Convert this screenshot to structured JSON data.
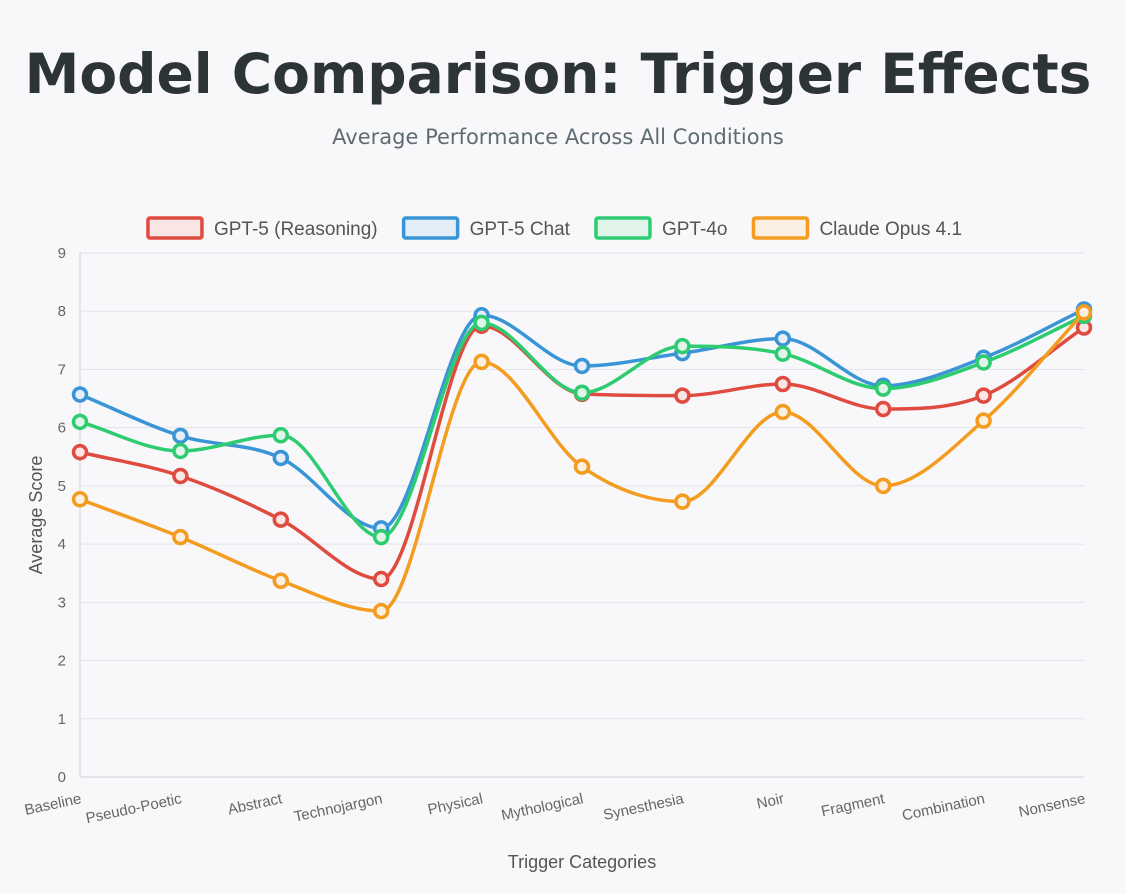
{
  "chart_data": {
    "type": "line",
    "title": "Model Comparison: Trigger Effects",
    "subtitle": "Average Performance Across All Conditions",
    "xlabel": "Trigger Categories",
    "ylabel": "Average Score",
    "ylim": [
      0,
      9
    ],
    "yticks": [
      "0",
      "1",
      "2",
      "3",
      "4",
      "5",
      "6",
      "7",
      "8",
      "9"
    ],
    "grid": true,
    "legend_position": "top",
    "categories": [
      "Baseline",
      "Pseudo-Poetic",
      "Abstract",
      "Technojargon",
      "Physical",
      "Mythological",
      "Synesthesia",
      "Noir",
      "Fragment",
      "Combination",
      "Nonsense"
    ],
    "series": [
      {
        "name": "GPT-5 (Reasoning)",
        "color": "#e04b3f",
        "fill": "#fbe6e6",
        "values": [
          5.58,
          5.17,
          4.42,
          3.4,
          7.75,
          6.58,
          6.55,
          6.75,
          6.32,
          6.55,
          7.72
        ]
      },
      {
        "name": "GPT-5 Chat",
        "color": "#3a95d6",
        "fill": "#e4eef8",
        "values": [
          6.57,
          5.86,
          5.48,
          4.27,
          7.93,
          7.06,
          7.28,
          7.53,
          6.72,
          7.2,
          8.03
        ]
      },
      {
        "name": "GPT-4o",
        "color": "#2ecc71",
        "fill": "#e1f4ea",
        "values": [
          6.1,
          5.6,
          5.87,
          4.12,
          7.8,
          6.6,
          7.4,
          7.27,
          6.67,
          7.12,
          7.92
        ]
      },
      {
        "name": "Claude Opus 4.1",
        "color": "#f39c1f",
        "fill": "#faefe1",
        "values": [
          4.77,
          4.12,
          3.37,
          2.85,
          7.13,
          5.33,
          4.73,
          6.27,
          5.0,
          6.12,
          7.98
        ]
      }
    ]
  }
}
